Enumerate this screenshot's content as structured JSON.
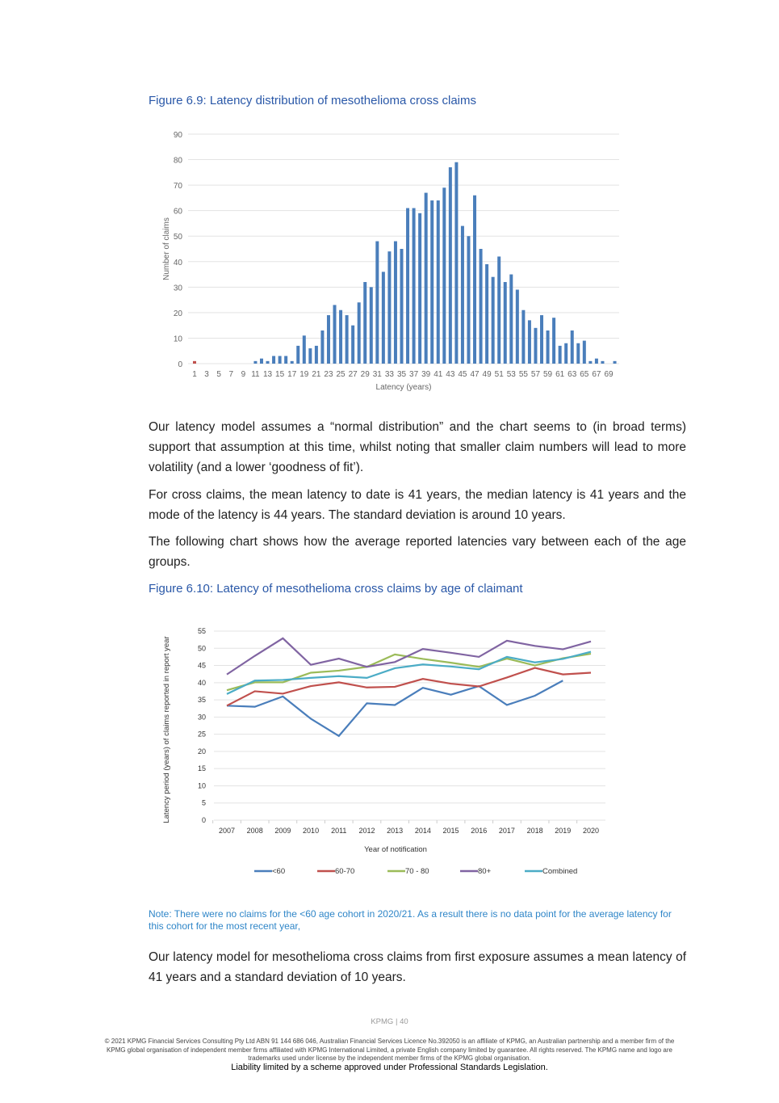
{
  "fig1": {
    "title": "Figure 6.9: Latency distribution of mesothelioma cross claims"
  },
  "fig2": {
    "title": "Figure 6.10: Latency of mesothelioma cross claims by age of claimant"
  },
  "paragraphs": [
    "Our latency model assumes a “normal distribution” and the chart seems to (in broad terms) support that assumption at this time, whilst noting that smaller claim numbers will lead to more volatility (and a lower ‘goodness of fit’).",
    "For cross claims, the mean latency to date is 41 years, the median latency is 41 years and the mode of the latency is 44 years. The standard deviation is around 10 years.",
    "The following chart shows how the average reported latencies vary between each of the age groups.",
    "Our latency model for mesothelioma cross claims from first exposure assumes a mean latency of 41 years and a standard deviation of 10 years."
  ],
  "note": "Note: There were no claims for the <60 age cohort in 2020/21. As a result there is no data point for the average latency for this cohort for the most recent year,",
  "footer": {
    "page": "KPMG  |  40",
    "legal": "© 2021 KPMG Financial Services Consulting Pty Ltd ABN 91 144 686 046, Australian Financial Services Licence No.392050 is an affiliate of KPMG, an Australian partnership and a member firm of the KPMG global organisation of independent member firms affiliated with KPMG International Limited, a private English company limited by guarantee. All rights reserved. The KPMG name and logo are trademarks used under license by the independent member  firms of the KPMG global organisation.",
    "liability": "Liability limited by a scheme approved under Professional Standards Legislation."
  },
  "chart_data": [
    {
      "type": "bar",
      "xlabel": "Latency (years)",
      "ylabel": "Number of claims",
      "ylim": [
        0,
        90
      ],
      "yticks": [
        0,
        10,
        20,
        30,
        40,
        50,
        60,
        70,
        80,
        90
      ],
      "x_tick_labels": [
        "1",
        "3",
        "5",
        "7",
        "9",
        "11",
        "13",
        "15",
        "17",
        "19",
        "21",
        "23",
        "25",
        "27",
        "29",
        "31",
        "33",
        "35",
        "37",
        "39",
        "41",
        "43",
        "45",
        "47",
        "49",
        "51",
        "53",
        "55",
        "57",
        "59",
        "61",
        "63",
        "65",
        "67",
        "69"
      ],
      "x": [
        1,
        2,
        3,
        4,
        5,
        6,
        7,
        8,
        9,
        10,
        11,
        12,
        13,
        14,
        15,
        16,
        17,
        18,
        19,
        20,
        21,
        22,
        23,
        24,
        25,
        26,
        27,
        28,
        29,
        30,
        31,
        32,
        33,
        34,
        35,
        36,
        37,
        38,
        39,
        40,
        41,
        42,
        43,
        44,
        45,
        46,
        47,
        48,
        49,
        50,
        51,
        52,
        53,
        54,
        55,
        56,
        57,
        58,
        59,
        60,
        61,
        62,
        63,
        64,
        65,
        66,
        67,
        68,
        69,
        70
      ],
      "values": [
        1,
        0,
        0,
        0,
        0,
        0,
        0,
        0,
        0,
        0,
        1,
        2,
        1,
        3,
        3,
        3,
        1,
        7,
        11,
        6,
        7,
        13,
        19,
        23,
        21,
        19,
        15,
        24,
        32,
        30,
        48,
        36,
        44,
        48,
        45,
        61,
        61,
        59,
        67,
        64,
        64,
        69,
        77,
        79,
        54,
        50,
        66,
        45,
        39,
        34,
        42,
        32,
        35,
        29,
        21,
        17,
        14,
        19,
        13,
        18,
        7,
        8,
        13,
        8,
        9,
        1,
        2,
        1,
        0,
        1
      ],
      "colors": {
        "default": "#4a7ebb",
        "highlight": "#c0504d"
      },
      "grid": true
    },
    {
      "type": "line",
      "xlabel": "Year of notification",
      "ylabel": "Latency period (years) of claims reported in report year",
      "ylim": [
        0,
        55
      ],
      "yticks": [
        0,
        5,
        10,
        15,
        20,
        25,
        30,
        35,
        40,
        45,
        50,
        55
      ],
      "categories": [
        "2007",
        "2008",
        "2009",
        "2010",
        "2011",
        "2012",
        "2013",
        "2014",
        "2015",
        "2016",
        "2017",
        "2018",
        "2019",
        "2020"
      ],
      "legend": "bottom",
      "series": [
        {
          "name": "<60",
          "color": "#4a7ebb",
          "values": [
            33.3,
            33.0,
            36.0,
            29.5,
            24.5,
            34.0,
            33.5,
            38.5,
            36.5,
            39.0,
            33.5,
            36.2,
            40.6,
            null
          ]
        },
        {
          "name": "60-70",
          "color": "#c0504d",
          "values": [
            33.3,
            37.5,
            36.8,
            39.0,
            40.1,
            38.6,
            38.8,
            41.1,
            39.7,
            38.9,
            41.5,
            44.3,
            42.4,
            42.9
          ]
        },
        {
          "name": "70 - 80",
          "color": "#9bbb59",
          "values": [
            37.8,
            40.1,
            40.1,
            42.9,
            43.5,
            44.6,
            48.2,
            46.9,
            45.8,
            44.6,
            47.0,
            45.0,
            47.1,
            48.4
          ]
        },
        {
          "name": "80+",
          "color": "#8064a2",
          "values": [
            42.4,
            47.8,
            52.9,
            45.2,
            47.0,
            44.6,
            46.0,
            49.8,
            48.7,
            47.5,
            52.2,
            50.7,
            49.7,
            52.0
          ]
        },
        {
          "name": "Combined",
          "color": "#4bacc6",
          "values": [
            36.7,
            40.6,
            40.8,
            41.4,
            41.9,
            41.4,
            44.2,
            45.3,
            44.7,
            43.9,
            47.5,
            45.9,
            46.9,
            49.0
          ]
        }
      ],
      "grid": true
    }
  ]
}
